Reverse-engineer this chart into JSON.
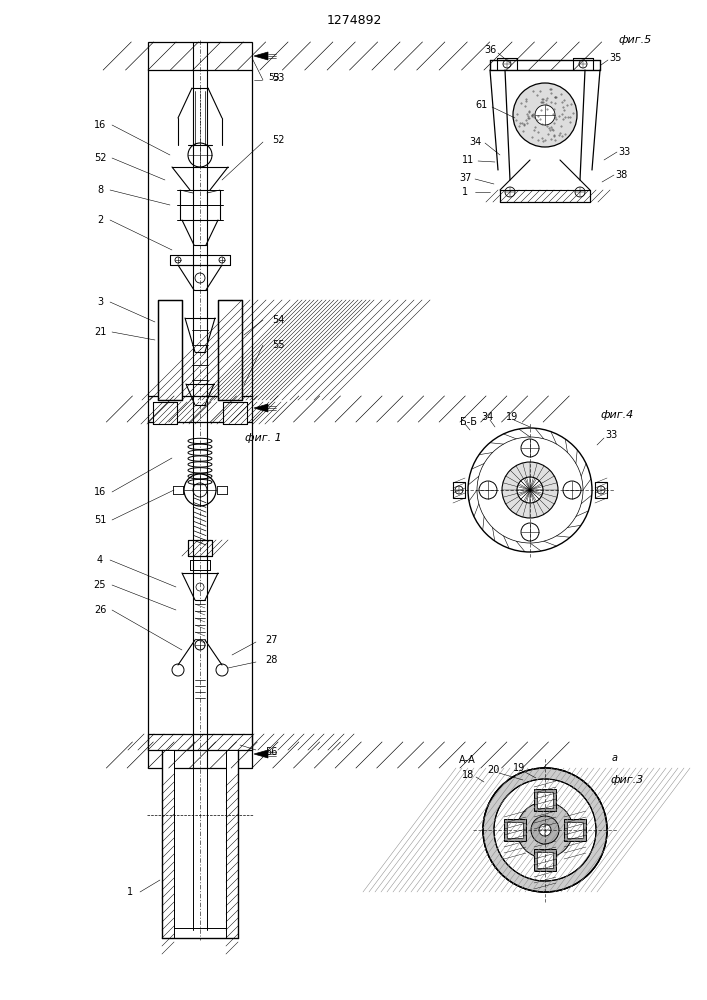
{
  "title": "1274892",
  "bg_color": "#ffffff",
  "line_color": "#000000",
  "fig1_label": "фиг. 1",
  "fig3_label": "фиг.3",
  "fig4_label": "фиг.4",
  "fig5_label": "фиг.5"
}
